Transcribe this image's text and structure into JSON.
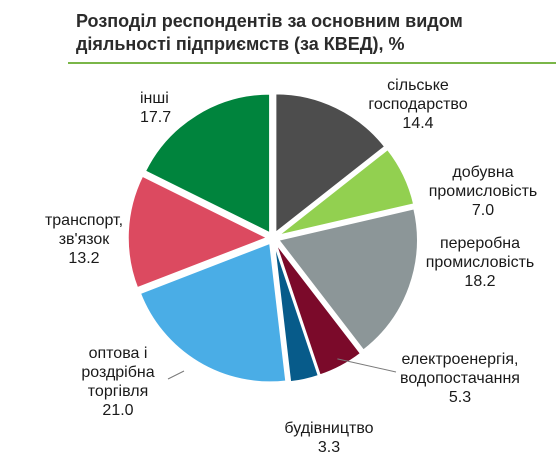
{
  "chart_data": {
    "type": "pie",
    "title": "Розподіл респондентів за основним видом діяльності підприємств  (за КВЕД), %",
    "title_lines": [
      "Розподіл респондентів за основним видом",
      "діяльності підприємств  (за КВЕД), %"
    ],
    "start_angle_deg": 0,
    "direction": "clockwise",
    "exploded": true,
    "slices": [
      {
        "label_lines": [
          "сільське",
          "господарство"
        ],
        "value": 14.4,
        "value_label": "14.4",
        "color": "#4d4d4d"
      },
      {
        "label_lines": [
          "добувна",
          "промисловість"
        ],
        "value": 7.0,
        "value_label": "7.0",
        "color": "#92d050"
      },
      {
        "label_lines": [
          "переробна",
          "промисловість"
        ],
        "value": 18.2,
        "value_label": "18.2",
        "color": "#8c9698"
      },
      {
        "label_lines": [
          "електроенергія,",
          "водопостачання"
        ],
        "value": 5.3,
        "value_label": "5.3",
        "color": "#7b0a2a"
      },
      {
        "label_lines": [
          "будівництво"
        ],
        "value": 3.3,
        "value_label": "3.3",
        "color": "#075b8a"
      },
      {
        "label_lines": [
          "оптова і",
          "роздрібна",
          "торгівля"
        ],
        "value": 21.0,
        "value_label": "21.0",
        "color": "#4aade6"
      },
      {
        "label_lines": [
          "транспорт,",
          "зв'язок"
        ],
        "value": 13.2,
        "value_label": "13.2",
        "color": "#dc4a60"
      },
      {
        "label_lines": [
          "інші"
        ],
        "value": 17.7,
        "value_label": "17.7",
        "color": "#00843d"
      }
    ]
  }
}
